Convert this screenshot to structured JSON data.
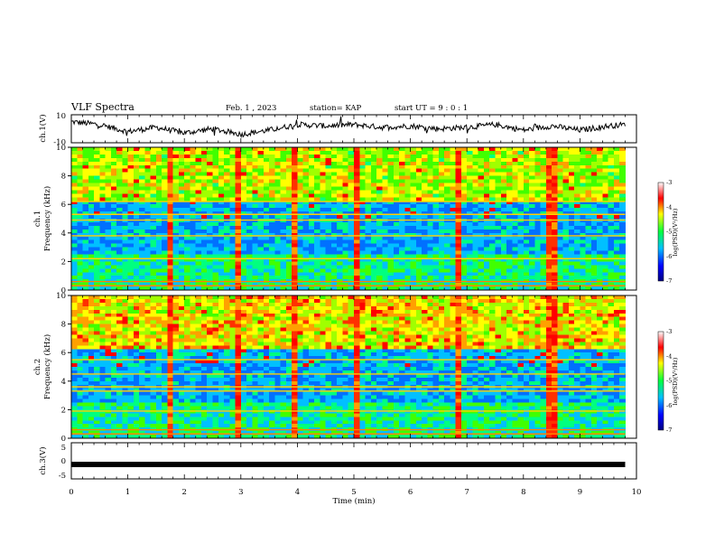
{
  "header": {
    "title": "VLF Spectra",
    "date": "Feb. 1 , 2023",
    "station": "station= KAP",
    "start": "start  UT =   9 : 0  : 1"
  },
  "colors": {
    "spectrum_low": "#000080",
    "spectrum_mid": "#00ff40",
    "spectrum_high": "#ff0000",
    "trace": "#000000"
  },
  "chart_data": [
    {
      "type": "line",
      "panel": "ch1-waveform",
      "ylabel": "ch.1(V)",
      "ylim": [
        -10,
        10
      ],
      "yticks": [
        "10",
        "-10"
      ],
      "xlim": [
        0,
        10
      ],
      "series": [
        {
          "x": [
            0,
            0.5,
            1,
            1.5,
            2,
            2.5,
            3,
            3.5,
            4,
            4.5,
            5,
            5.5,
            6,
            6.5,
            7,
            7.5,
            8,
            8.5,
            9,
            9.5,
            9.8
          ],
          "values": [
            5,
            3,
            -2,
            1,
            -3,
            0,
            -4,
            -1,
            3,
            2,
            3,
            1,
            2,
            0,
            1,
            3,
            -1,
            2,
            -1,
            2,
            3
          ]
        }
      ]
    },
    {
      "type": "heatmap",
      "panel": "ch1-spectrogram",
      "ylabel": "ch.1\nFrequency (kHz)",
      "ylim": [
        0,
        10
      ],
      "yticks": [
        "0",
        "2",
        "4",
        "6",
        "8",
        "10"
      ],
      "xlim": [
        0,
        9.8
      ],
      "colorbar": {
        "label": "log(PSD)(V²/Hz)",
        "range": [
          -7,
          -3
        ],
        "ticks": [
          "-3",
          "-4",
          "-5",
          "-6",
          "-7"
        ]
      },
      "bands_khz": [
        0.3,
        0.6,
        2.2,
        3.8,
        4.9,
        5.3,
        6.2
      ],
      "bursts_min": [
        1.75,
        2.95,
        3.95,
        5.05,
        6.85,
        8.5
      ]
    },
    {
      "type": "heatmap",
      "panel": "ch2-spectrogram",
      "ylabel": "ch.2\nFrequency (kHz)",
      "ylim": [
        0,
        10
      ],
      "yticks": [
        "0",
        "2",
        "4",
        "6",
        "8",
        "10"
      ],
      "xlim": [
        0,
        9.8
      ],
      "colorbar": {
        "label": "log(PSD)(V²/Hz)",
        "range": [
          -7,
          -3
        ],
        "ticks": [
          "-3",
          "-4",
          "-5",
          "-6",
          "-7"
        ]
      },
      "bands_khz": [
        0.3,
        0.6,
        1.9,
        3.3,
        3.6,
        4.5,
        5.5
      ],
      "bursts_min": [
        1.75,
        2.95,
        3.95,
        5.05,
        6.85,
        8.5
      ]
    },
    {
      "type": "line",
      "panel": "ch3-waveform",
      "ylabel": "ch.3(V)",
      "ylim": [
        -5,
        5
      ],
      "yticks": [
        "5",
        "0",
        "-5"
      ],
      "xlim": [
        0,
        10
      ],
      "series": [
        {
          "x": [
            0,
            9.8
          ],
          "values": [
            -1,
            -1
          ]
        }
      ]
    }
  ],
  "xaxis": {
    "label": "Time (min)",
    "ticks": [
      "0",
      "1",
      "2",
      "3",
      "4",
      "5",
      "6",
      "7",
      "8",
      "9",
      "10"
    ]
  }
}
